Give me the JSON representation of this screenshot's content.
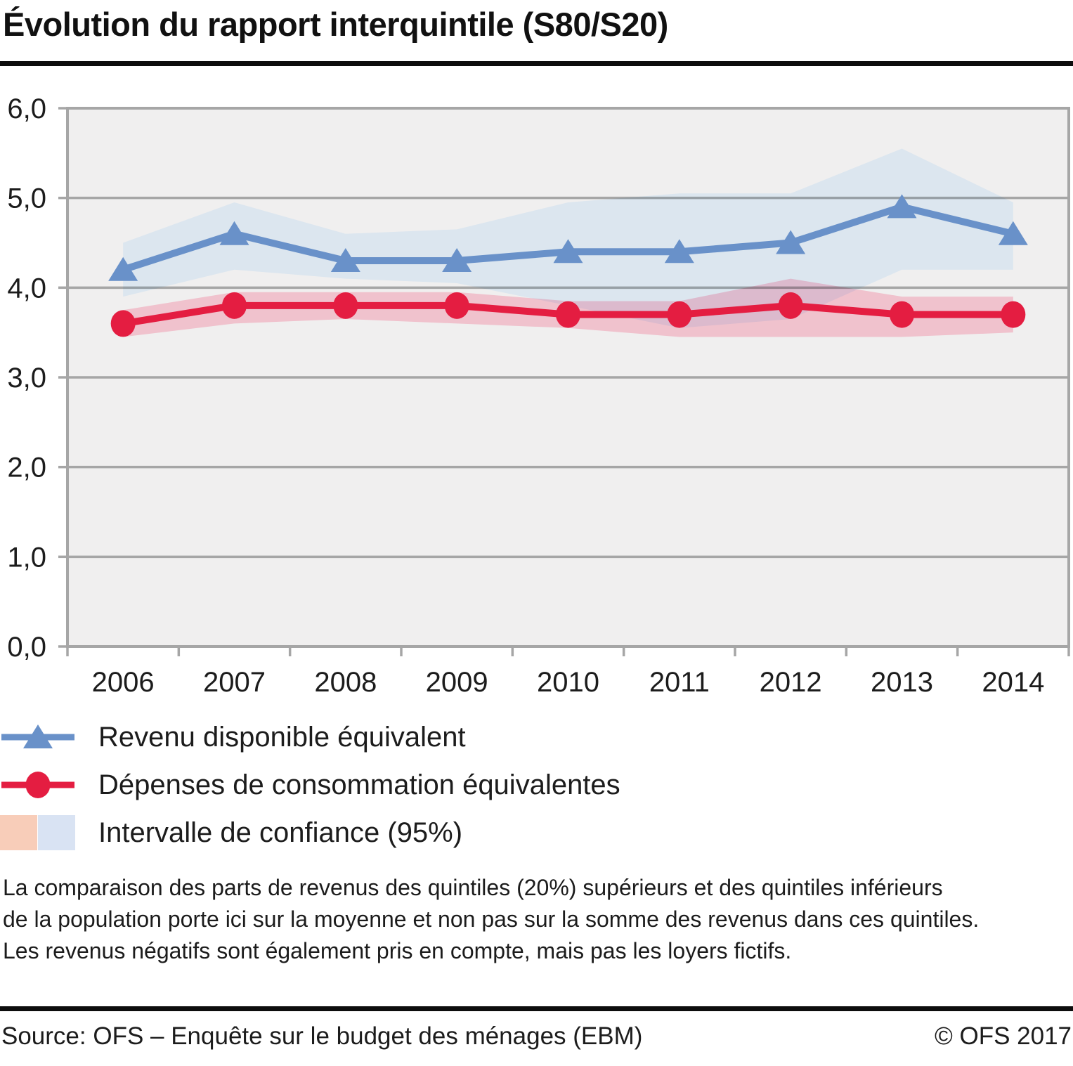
{
  "title": "Évolution du rapport interquintile (S80/S20)",
  "chart_data": {
    "type": "line",
    "title": "Évolution du rapport interquintile (S80/S20)",
    "x": [
      2006,
      2007,
      2008,
      2009,
      2010,
      2011,
      2012,
      2013,
      2014
    ],
    "xlabel": "",
    "ylabel": "",
    "ylim": [
      0,
      6
    ],
    "yticks": [
      0,
      1,
      2,
      3,
      4,
      5,
      6
    ],
    "ytick_labels": [
      "0,0",
      "1,0",
      "2,0",
      "3,0",
      "4,0",
      "5,0",
      "6,0"
    ],
    "grid": true,
    "legend_position": "bottom-left",
    "plot_background": "#f0efef",
    "grid_color": "#a6a6a6",
    "series": [
      {
        "name": "Revenu disponible équivalent",
        "marker": "triangle",
        "color": "#6991c9",
        "ci_color": "#dce7f4",
        "values": [
          4.2,
          4.6,
          4.3,
          4.3,
          4.4,
          4.4,
          4.5,
          4.9,
          4.6
        ],
        "ci_upper": [
          4.5,
          4.95,
          4.6,
          4.65,
          4.95,
          5.05,
          5.05,
          5.55,
          4.95
        ],
        "ci_lower": [
          3.9,
          4.2,
          4.1,
          4.05,
          3.8,
          3.55,
          3.65,
          4.2,
          4.2
        ]
      },
      {
        "name": "Dépenses de consommation équivalentes",
        "marker": "circle",
        "color": "#e41d41",
        "ci_color": "#f1c2cd",
        "values": [
          3.6,
          3.8,
          3.8,
          3.8,
          3.7,
          3.7,
          3.8,
          3.7,
          3.7
        ],
        "ci_upper": [
          3.75,
          3.95,
          3.95,
          3.95,
          3.85,
          3.85,
          4.1,
          3.9,
          3.9
        ],
        "ci_lower": [
          3.45,
          3.6,
          3.65,
          3.6,
          3.55,
          3.45,
          3.45,
          3.45,
          3.5
        ]
      }
    ],
    "ci_label": "Intervalle de confiance (95%)"
  },
  "legend": {
    "items": [
      {
        "label": "Revenu disponible équivalent"
      },
      {
        "label": "Dépenses de consommation équivalentes"
      },
      {
        "label": "Intervalle de confiance (95%)",
        "swatch_colors": [
          "#f8cdb9",
          "#d9e3f3"
        ]
      }
    ]
  },
  "footnote": {
    "lines": [
      "La comparaison des parts de revenus des quintiles (20%) supérieurs et des quintiles inférieurs",
      "de la population porte ici sur la moyenne et non pas sur la somme des revenus dans ces quintiles.",
      "Les revenus négatifs sont également pris en compte, mais pas les loyers fictifs."
    ]
  },
  "footer": {
    "source": "Source: OFS – Enquête sur le budget des ménages (EBM)",
    "copyright": "© OFS 2017"
  }
}
